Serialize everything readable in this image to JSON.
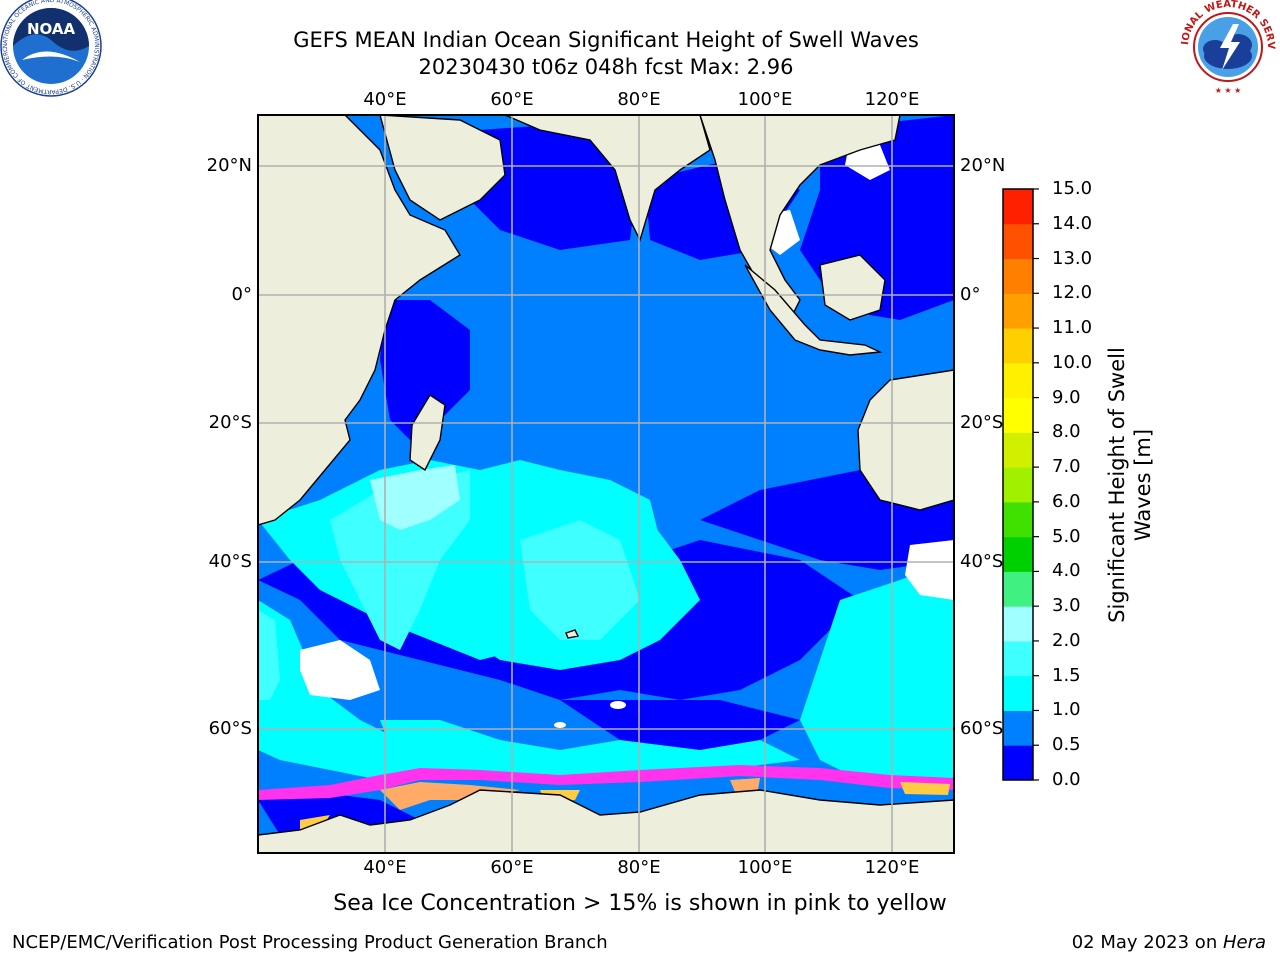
{
  "header": {
    "title_line1": "GEFS MEAN Indian Ocean Significant Height of Swell Waves",
    "title_line2": "20230430 t06z 048h fcst   Max: 2.96"
  },
  "logos": {
    "left": {
      "name": "noaa-logo",
      "text": "NOAA",
      "ring_text": "NATIONAL OCEANIC AND ATMOSPHERIC ADMINISTRATION · U.S. DEPARTMENT OF COMMERCE"
    },
    "right": {
      "name": "national-weather-service-logo",
      "ring_text": "NATIONAL WEATHER SERVICE"
    }
  },
  "map": {
    "lon_ticks": [
      "40°E",
      "60°E",
      "80°E",
      "100°E",
      "120°E"
    ],
    "lat_ticks": [
      "20°N",
      "0°",
      "20°S",
      "40°S",
      "60°S"
    ],
    "land_color": "#eeeedd",
    "no_data_color": "#ffffff",
    "coastline_color": "#000000",
    "gridline_color": "#b0b0b0",
    "ice_colors": [
      "#ff33ee",
      "#ff66aa",
      "#ffaa66",
      "#ffcc44"
    ]
  },
  "colorbar": {
    "title_line1": "Significant Height of Swell",
    "title_line2": "Waves [m]",
    "levels": [
      "0.0",
      "0.5",
      "1.0",
      "1.5",
      "2.0",
      "3.0",
      "4.0",
      "5.0",
      "6.0",
      "7.0",
      "8.0",
      "9.0",
      "10.0",
      "11.0",
      "12.0",
      "13.0",
      "14.0",
      "15.0"
    ],
    "colors": [
      "#0000ff",
      "#0080ff",
      "#00ffff",
      "#40ffff",
      "#a0ffff",
      "#40f080",
      "#00d000",
      "#40e000",
      "#a0f000",
      "#d0f000",
      "#ffff00",
      "#fff000",
      "#ffd000",
      "#ffa000",
      "#ff8000",
      "#ff5000",
      "#ff2000"
    ]
  },
  "notes": {
    "ice_note": "Sea Ice Concentration > 15% is shown in pink to yellow"
  },
  "footer": {
    "left": "NCEP/EMC/Verification Post Processing Product Generation Branch",
    "right_date": "02 May 2023 on ",
    "right_machine": "Hera"
  }
}
